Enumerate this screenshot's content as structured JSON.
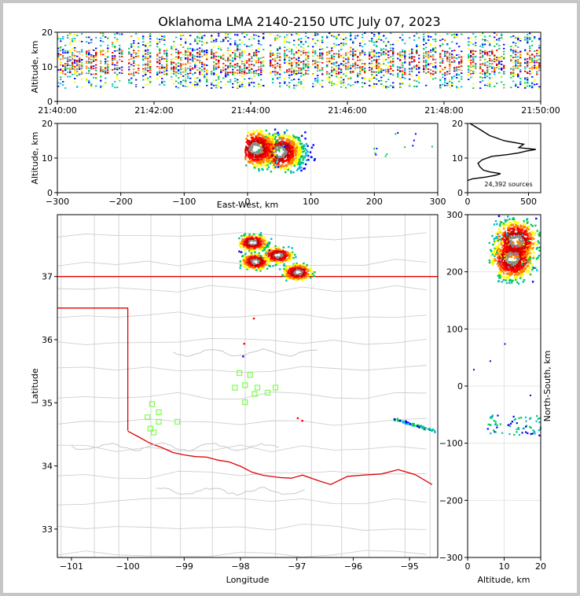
{
  "title": "Oklahoma LMA 2140-2150 UTC July 07, 2023",
  "chart_data": [
    {
      "type": "heatmap",
      "panel": "time-altitude",
      "ylabel": "Altitude, km",
      "xlabel": "",
      "ylim": [
        0,
        20
      ],
      "yticks": [
        "0",
        "10",
        "20"
      ],
      "xticks": [
        "21:40:00",
        "21:42:00",
        "21:44:00",
        "21:46:00",
        "21:48:00",
        "21:50:00"
      ],
      "xlim_minutes": [
        0,
        10
      ],
      "source_bands_km": [
        4,
        20
      ],
      "dense_core_km": [
        8,
        15
      ]
    },
    {
      "type": "heatmap",
      "panel": "east-west-altitude",
      "xlabel": "East-West, km",
      "ylabel": "Altitude, km",
      "xlim": [
        -300,
        300
      ],
      "ylim": [
        0,
        20
      ],
      "xticks": [
        "−300",
        "−200",
        "−100",
        "0",
        "100",
        "200",
        "300"
      ],
      "yticks": [
        "0",
        "10",
        "20"
      ],
      "grid": true,
      "main_cluster_km": {
        "x": [
          -5,
          120
        ],
        "z": [
          3,
          20
        ]
      },
      "cores": [
        {
          "x": 12,
          "z": 13
        },
        {
          "x": 50,
          "z": 12
        }
      ]
    },
    {
      "type": "line",
      "panel": "altitude-histogram",
      "xlim": [
        0,
        600
      ],
      "ylim": [
        0,
        20
      ],
      "xticks": [
        "0",
        "500"
      ],
      "yticks": [
        "0",
        "10",
        "20"
      ],
      "annotation": "24,392 sources",
      "x": [
        0,
        40,
        150,
        230,
        270,
        180,
        130,
        100,
        85,
        120,
        200,
        330,
        420,
        480,
        560,
        420,
        460,
        300,
        180,
        90,
        20
      ],
      "y": [
        3.5,
        4,
        4.5,
        5,
        5.5,
        6,
        6.5,
        7.5,
        8.5,
        9.5,
        10.5,
        11,
        11.5,
        12,
        12.5,
        13,
        14,
        15,
        16.5,
        18.5,
        20
      ]
    },
    {
      "type": "scatter",
      "panel": "plan-view-map",
      "xlabel": "Longitude",
      "ylabel": "Latitude",
      "xlim": [
        -101.25,
        -94.5
      ],
      "ylim": [
        32.55,
        37.98
      ],
      "xticks": [
        "−101",
        "−100",
        "−99",
        "−98",
        "−97",
        "−96",
        "−95"
      ],
      "yticks": [
        "33",
        "34",
        "35",
        "36",
        "37"
      ],
      "stations": [
        [
          -99.57,
          34.98
        ],
        [
          -99.45,
          34.85
        ],
        [
          -99.65,
          34.77
        ],
        [
          -99.45,
          34.7
        ],
        [
          -99.12,
          34.7
        ],
        [
          -99.6,
          34.59
        ],
        [
          -99.54,
          34.53
        ],
        [
          -98.02,
          35.47
        ],
        [
          -97.83,
          35.44
        ],
        [
          -97.92,
          35.28
        ],
        [
          -98.1,
          35.24
        ],
        [
          -97.7,
          35.24
        ],
        [
          -97.38,
          35.24
        ],
        [
          -97.52,
          35.16
        ],
        [
          -97.75,
          35.14
        ],
        [
          -97.92,
          35.01
        ]
      ],
      "main_cluster": {
        "lon": [
          -98.05,
          -96.6
        ],
        "lat": [
          36.95,
          37.95
        ]
      },
      "cores": [
        [
          -97.8,
          37.55
        ],
        [
          -97.35,
          37.35
        ],
        [
          -97.75,
          37.25
        ],
        [
          -97.0,
          37.08
        ]
      ],
      "se_line": [
        [
          -95.3,
          34.76
        ],
        [
          -94.55,
          34.56
        ]
      ],
      "scattered": [
        [
          -97.0,
          34.77
        ],
        [
          -96.92,
          34.73
        ],
        [
          -97.95,
          35.95
        ],
        [
          -97.78,
          36.35
        ],
        [
          -97.97,
          35.75
        ]
      ],
      "state_border_color": "#e00000",
      "county_color": "#cfcfcf"
    },
    {
      "type": "heatmap",
      "panel": "altitude-north-south",
      "xlabel": "Altitude, km",
      "ylabel": "North-South, km",
      "xlim": [
        0,
        20
      ],
      "ylim": [
        -300,
        300
      ],
      "xticks": [
        "0",
        "10",
        "20"
      ],
      "yticks": [
        "−300",
        "−200",
        "−100",
        "0",
        "100",
        "200",
        "300"
      ],
      "grid": true,
      "main_cluster_km": {
        "alt": [
          3,
          20
        ],
        "ns": [
          180,
          300
        ]
      },
      "cores": [
        {
          "alt": 13,
          "ns": 255
        },
        {
          "alt": 12,
          "ns": 225
        }
      ]
    }
  ],
  "colors": {
    "density_scale": [
      "#0000ff",
      "#00bcd4",
      "#00c853",
      "#ffff00",
      "#ff8000",
      "#ff0000",
      "#c80000",
      "#8c8c8c",
      "#ffffff"
    ],
    "station": "#7cff4a",
    "histogram": "#000000"
  }
}
